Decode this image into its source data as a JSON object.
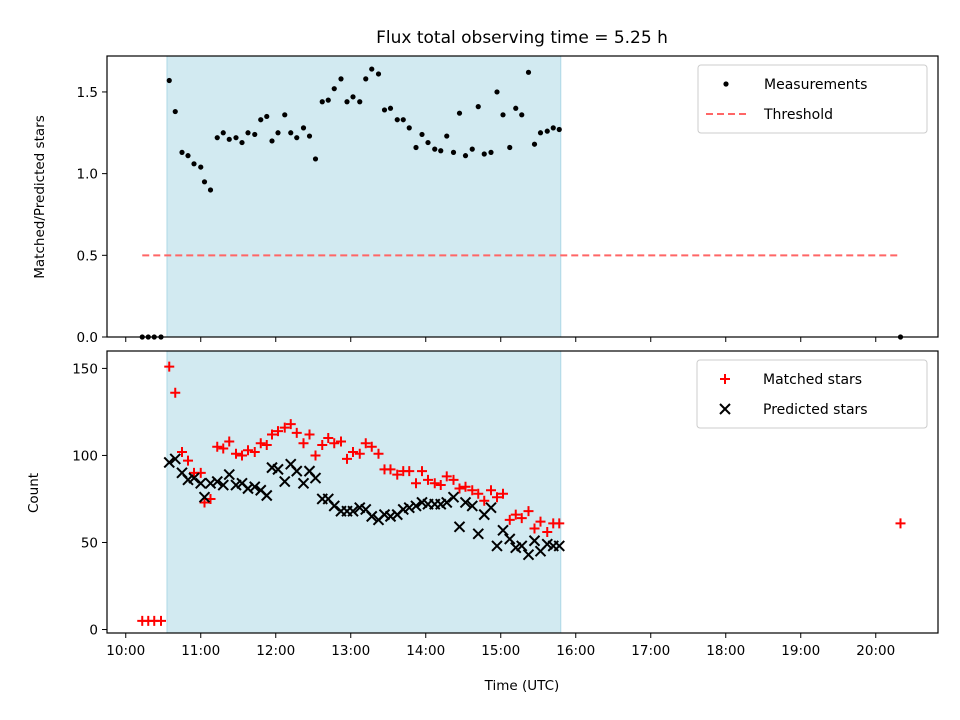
{
  "chart_data": {
    "type": "scatter",
    "title": "Flux total observing time = 5.25 h",
    "xlabel": "Time (UTC)",
    "x_unit": "hours (UTC)",
    "xlim": [
      9.75,
      20.83
    ],
    "x_ticks": [
      10,
      11,
      12,
      13,
      14,
      15,
      16,
      17,
      18,
      19,
      20
    ],
    "x_tick_labels": [
      "10:00",
      "11:00",
      "12:00",
      "13:00",
      "14:00",
      "15:00",
      "16:00",
      "17:00",
      "18:00",
      "19:00",
      "20:00"
    ],
    "observing_window": {
      "start": 10.55,
      "end": 15.8,
      "color": "#add8e6"
    },
    "panels": [
      {
        "ylabel": "Matched/Predicted stars",
        "ylim": [
          0,
          1.72
        ],
        "y_ticks": [
          0.0,
          0.5,
          1.0,
          1.5
        ],
        "y_tick_labels": [
          "0.0",
          "0.5",
          "1.0",
          "1.5"
        ],
        "legend": {
          "position": "top-right",
          "entries": [
            "Measurements",
            "Threshold"
          ]
        },
        "series": [
          {
            "name": "Measurements",
            "marker": "dot",
            "color": "#000000",
            "points": [
              [
                10.22,
                0.0
              ],
              [
                10.3,
                0.0
              ],
              [
                10.38,
                0.0
              ],
              [
                10.47,
                0.0
              ],
              [
                10.58,
                1.57
              ],
              [
                10.66,
                1.38
              ],
              [
                10.75,
                1.13
              ],
              [
                10.83,
                1.11
              ],
              [
                10.91,
                1.06
              ],
              [
                11.0,
                1.04
              ],
              [
                11.05,
                0.95
              ],
              [
                11.13,
                0.9
              ],
              [
                11.22,
                1.22
              ],
              [
                11.3,
                1.25
              ],
              [
                11.38,
                1.21
              ],
              [
                11.47,
                1.22
              ],
              [
                11.55,
                1.19
              ],
              [
                11.63,
                1.25
              ],
              [
                11.72,
                1.24
              ],
              [
                11.8,
                1.33
              ],
              [
                11.88,
                1.35
              ],
              [
                11.95,
                1.2
              ],
              [
                12.03,
                1.25
              ],
              [
                12.12,
                1.36
              ],
              [
                12.2,
                1.25
              ],
              [
                12.28,
                1.22
              ],
              [
                12.37,
                1.28
              ],
              [
                12.45,
                1.23
              ],
              [
                12.53,
                1.09
              ],
              [
                12.62,
                1.44
              ],
              [
                12.7,
                1.45
              ],
              [
                12.78,
                1.52
              ],
              [
                12.87,
                1.58
              ],
              [
                12.95,
                1.44
              ],
              [
                13.03,
                1.47
              ],
              [
                13.12,
                1.44
              ],
              [
                13.2,
                1.58
              ],
              [
                13.28,
                1.64
              ],
              [
                13.37,
                1.61
              ],
              [
                13.45,
                1.39
              ],
              [
                13.53,
                1.4
              ],
              [
                13.62,
                1.33
              ],
              [
                13.7,
                1.33
              ],
              [
                13.78,
                1.28
              ],
              [
                13.87,
                1.16
              ],
              [
                13.95,
                1.24
              ],
              [
                14.03,
                1.19
              ],
              [
                14.12,
                1.15
              ],
              [
                14.2,
                1.14
              ],
              [
                14.28,
                1.23
              ],
              [
                14.37,
                1.13
              ],
              [
                14.45,
                1.37
              ],
              [
                14.53,
                1.11
              ],
              [
                14.62,
                1.15
              ],
              [
                14.7,
                1.41
              ],
              [
                14.78,
                1.12
              ],
              [
                14.87,
                1.13
              ],
              [
                14.95,
                1.5
              ],
              [
                15.03,
                1.36
              ],
              [
                15.12,
                1.16
              ],
              [
                15.2,
                1.4
              ],
              [
                15.28,
                1.36
              ],
              [
                15.37,
                1.62
              ],
              [
                15.45,
                1.18
              ],
              [
                15.53,
                1.25
              ],
              [
                15.62,
                1.26
              ],
              [
                15.7,
                1.28
              ],
              [
                15.78,
                1.27
              ],
              [
                20.33,
                0.0
              ]
            ]
          },
          {
            "name": "Threshold",
            "style": "dashed",
            "color": "#ff6666",
            "points": [
              [
                10.22,
                0.5
              ],
              [
                20.33,
                0.5
              ]
            ]
          }
        ]
      },
      {
        "ylabel": "Count",
        "ylim": [
          -2,
          160
        ],
        "y_ticks": [
          0,
          50,
          100,
          150
        ],
        "y_tick_labels": [
          "0",
          "50",
          "100",
          "150"
        ],
        "legend": {
          "position": "top-right",
          "entries": [
            "Matched stars",
            "Predicted stars"
          ]
        },
        "series": [
          {
            "name": "Matched stars",
            "marker": "plus",
            "color": "#ff0000",
            "points": [
              [
                10.22,
                5
              ],
              [
                10.3,
                5
              ],
              [
                10.38,
                5
              ],
              [
                10.47,
                5
              ],
              [
                10.58,
                151
              ],
              [
                10.66,
                136
              ],
              [
                10.75,
                102
              ],
              [
                10.83,
                97
              ],
              [
                10.91,
                90
              ],
              [
                11.0,
                90
              ],
              [
                11.05,
                73
              ],
              [
                11.13,
                75
              ],
              [
                11.22,
                105
              ],
              [
                11.3,
                104
              ],
              [
                11.38,
                108
              ],
              [
                11.47,
                101
              ],
              [
                11.55,
                100
              ],
              [
                11.63,
                103
              ],
              [
                11.72,
                102
              ],
              [
                11.8,
                107
              ],
              [
                11.88,
                106
              ],
              [
                11.95,
                112
              ],
              [
                12.03,
                114
              ],
              [
                12.12,
                116
              ],
              [
                12.2,
                118
              ],
              [
                12.28,
                113
              ],
              [
                12.37,
                107
              ],
              [
                12.45,
                112
              ],
              [
                12.53,
                100
              ],
              [
                12.62,
                106
              ],
              [
                12.7,
                110
              ],
              [
                12.78,
                107
              ],
              [
                12.87,
                108
              ],
              [
                12.95,
                98
              ],
              [
                13.03,
                102
              ],
              [
                13.12,
                101
              ],
              [
                13.2,
                107
              ],
              [
                13.28,
                105
              ],
              [
                13.37,
                101
              ],
              [
                13.45,
                92
              ],
              [
                13.53,
                92
              ],
              [
                13.62,
                89
              ],
              [
                13.7,
                91
              ],
              [
                13.78,
                91
              ],
              [
                13.87,
                84
              ],
              [
                13.95,
                91
              ],
              [
                14.03,
                86
              ],
              [
                14.12,
                84
              ],
              [
                14.2,
                83
              ],
              [
                14.28,
                88
              ],
              [
                14.37,
                86
              ],
              [
                14.45,
                81
              ],
              [
                14.53,
                82
              ],
              [
                14.62,
                80
              ],
              [
                14.7,
                78
              ],
              [
                14.78,
                74
              ],
              [
                14.87,
                80
              ],
              [
                14.95,
                76
              ],
              [
                15.03,
                78
              ],
              [
                15.12,
                63
              ],
              [
                15.2,
                66
              ],
              [
                15.28,
                64
              ],
              [
                15.37,
                68
              ],
              [
                15.45,
                58
              ],
              [
                15.53,
                62
              ],
              [
                15.62,
                56
              ],
              [
                15.7,
                61
              ],
              [
                15.78,
                61
              ],
              [
                20.33,
                61
              ]
            ]
          },
          {
            "name": "Predicted stars",
            "marker": "x",
            "color": "#000000",
            "points": [
              [
                10.58,
                96
              ],
              [
                10.66,
                98
              ],
              [
                10.75,
                90
              ],
              [
                10.83,
                86
              ],
              [
                10.91,
                87
              ],
              [
                11.0,
                84
              ],
              [
                11.05,
                76
              ],
              [
                11.13,
                84
              ],
              [
                11.22,
                85
              ],
              [
                11.3,
                83
              ],
              [
                11.38,
                89
              ],
              [
                11.47,
                83
              ],
              [
                11.55,
                84
              ],
              [
                11.63,
                81
              ],
              [
                11.72,
                82
              ],
              [
                11.8,
                80
              ],
              [
                11.88,
                77
              ],
              [
                11.95,
                93
              ],
              [
                12.03,
                92
              ],
              [
                12.12,
                85
              ],
              [
                12.2,
                95
              ],
              [
                12.28,
                91
              ],
              [
                12.37,
                84
              ],
              [
                12.45,
                91
              ],
              [
                12.53,
                87
              ],
              [
                12.62,
                75
              ],
              [
                12.7,
                75
              ],
              [
                12.78,
                71
              ],
              [
                12.87,
                68
              ],
              [
                12.95,
                68
              ],
              [
                13.03,
                68
              ],
              [
                13.12,
                70
              ],
              [
                13.2,
                69
              ],
              [
                13.28,
                65
              ],
              [
                13.37,
                63
              ],
              [
                13.45,
                66
              ],
              [
                13.53,
                65
              ],
              [
                13.62,
                66
              ],
              [
                13.7,
                69
              ],
              [
                13.78,
                70
              ],
              [
                13.87,
                71
              ],
              [
                13.95,
                73
              ],
              [
                14.03,
                72
              ],
              [
                14.12,
                72
              ],
              [
                14.2,
                72
              ],
              [
                14.28,
                73
              ],
              [
                14.37,
                76
              ],
              [
                14.45,
                59
              ],
              [
                14.53,
                73
              ],
              [
                14.62,
                71
              ],
              [
                14.7,
                55
              ],
              [
                14.78,
                66
              ],
              [
                14.87,
                70
              ],
              [
                14.95,
                48
              ],
              [
                15.03,
                57
              ],
              [
                15.12,
                52
              ],
              [
                15.2,
                47
              ],
              [
                15.28,
                48
              ],
              [
                15.37,
                43
              ],
              [
                15.45,
                51
              ],
              [
                15.53,
                45
              ],
              [
                15.62,
                49
              ],
              [
                15.7,
                48
              ],
              [
                15.78,
                48
              ]
            ]
          }
        ]
      }
    ]
  }
}
